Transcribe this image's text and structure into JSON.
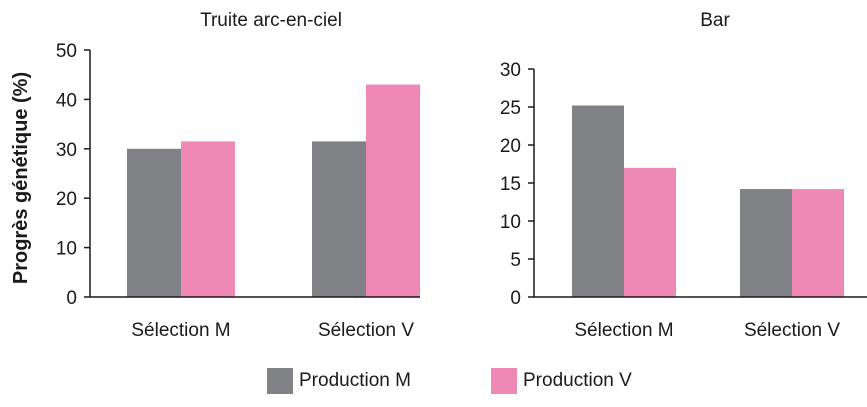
{
  "colors": {
    "series_m": "#808184",
    "series_v": "#f088b6",
    "axis": "#1a1a1a"
  },
  "ylabel": "Progrès génétique (%)",
  "legend": [
    {
      "name": "Production M",
      "color": "#808184"
    },
    {
      "name": "Production V",
      "color": "#f088b6"
    }
  ],
  "chart_data": [
    {
      "type": "bar",
      "title": "Truite arc-en-ciel",
      "categories": [
        "Sélection M",
        "Sélection V"
      ],
      "series": [
        {
          "name": "Production M",
          "values": [
            30,
            31.5
          ]
        },
        {
          "name": "Production V",
          "values": [
            31.5,
            43
          ]
        }
      ],
      "ylim": [
        0,
        50
      ],
      "yticks": [
        0,
        10,
        20,
        30,
        40,
        50
      ],
      "ylabel": "Progrès génétique (%)",
      "grid": false
    },
    {
      "type": "bar",
      "title": "Bar",
      "categories": [
        "Sélection M",
        "Sélection V"
      ],
      "series": [
        {
          "name": "Production M",
          "values": [
            25.2,
            14.2
          ]
        },
        {
          "name": "Production V",
          "values": [
            17,
            14.2
          ]
        }
      ],
      "ylim": [
        0,
        30
      ],
      "yticks": [
        0,
        5,
        10,
        15,
        20,
        25,
        30
      ],
      "grid": false
    }
  ]
}
